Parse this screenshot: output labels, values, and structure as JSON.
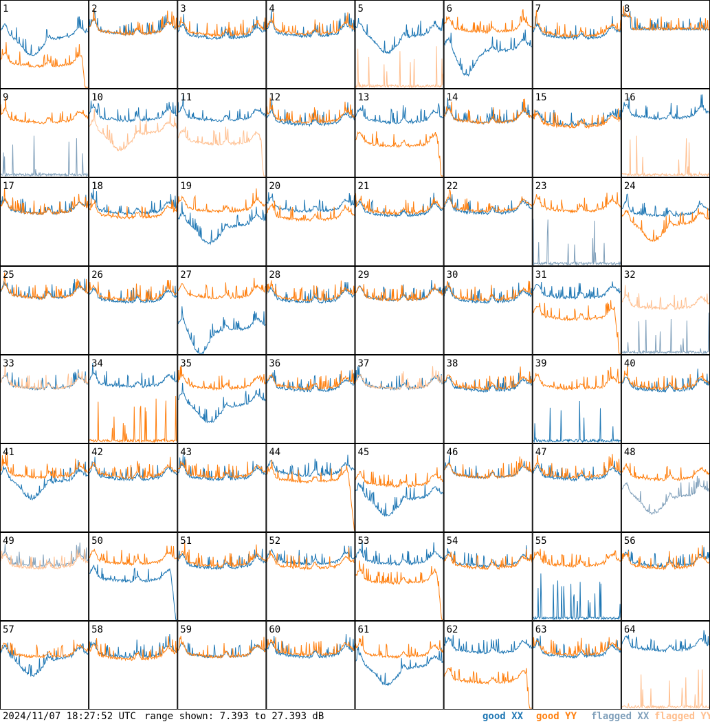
{
  "footer": {
    "timestamp": "2024/11/07 18:27:52 UTC",
    "range_text": "range shown: 7.393 to 27.393 dB"
  },
  "legend": [
    {
      "label": "good XX",
      "color": "#1f77b4"
    },
    {
      "label": "good YY",
      "color": "#ff7f0e"
    },
    {
      "label": "flagged XX",
      "color": "#7f9fba"
    },
    {
      "label": "flagged YY",
      "color": "#ffbf8f"
    }
  ],
  "colors": {
    "good_xx": "#1f77b4",
    "good_yy": "#ff7f0e",
    "flagged_xx": "#7f9fba",
    "flagged_yy": "#ffbf8f"
  },
  "chart_data": {
    "type": "line",
    "layout": "small-multiples 8x8",
    "unit": "dB",
    "ylim": [
      7.393,
      27.393
    ],
    "panels": [
      {
        "id": "1",
        "xx": {
          "state": "good",
          "level": 20.0,
          "shape": "dip"
        },
        "yy": {
          "state": "good",
          "level": 13.5,
          "shape": "dropend"
        }
      },
      {
        "id": "2",
        "xx": {
          "state": "good",
          "level": 21.0,
          "shape": "normal"
        },
        "yy": {
          "state": "good",
          "level": 21.0,
          "shape": "normal"
        }
      },
      {
        "id": "3",
        "xx": {
          "state": "good",
          "level": 20.0,
          "shape": "normal"
        },
        "yy": {
          "state": "good",
          "level": 20.7,
          "shape": "normal"
        }
      },
      {
        "id": "4",
        "xx": {
          "state": "good",
          "level": 20.5,
          "shape": "normal"
        },
        "yy": {
          "state": "good",
          "level": 21.0,
          "shape": "normal"
        }
      },
      {
        "id": "5",
        "xx": {
          "state": "good",
          "level": 20.5,
          "shape": "dip"
        },
        "yy": {
          "state": "flagged",
          "level": 7.5,
          "shape": "spikes"
        }
      },
      {
        "id": "6",
        "xx": {
          "state": "good",
          "level": 17.0,
          "shape": "lowdip"
        },
        "yy": {
          "state": "good",
          "level": 21.5,
          "shape": "normal"
        }
      },
      {
        "id": "7",
        "xx": {
          "state": "good",
          "level": 20.0,
          "shape": "normal"
        },
        "yy": {
          "state": "good",
          "level": 20.5,
          "shape": "normal"
        }
      },
      {
        "id": "8",
        "xx": {
          "state": "good",
          "level": 21.0,
          "shape": "flat"
        },
        "yy": {
          "state": "good",
          "level": 21.0,
          "shape": "flat"
        }
      },
      {
        "id": "9",
        "xx": {
          "state": "flagged",
          "level": 7.5,
          "shape": "spikes"
        },
        "yy": {
          "state": "good",
          "level": 21.0,
          "shape": "normal"
        }
      },
      {
        "id": "10",
        "xx": {
          "state": "good",
          "level": 21.5,
          "shape": "normal"
        },
        "yy": {
          "state": "flagged",
          "level": 18.5,
          "shape": "dip"
        }
      },
      {
        "id": "11",
        "xx": {
          "state": "good",
          "level": 21.5,
          "shape": "normal"
        },
        "yy": {
          "state": "flagged",
          "level": 16.0,
          "shape": "dropend"
        }
      },
      {
        "id": "12",
        "xx": {
          "state": "good",
          "level": 20.5,
          "shape": "normal"
        },
        "yy": {
          "state": "good",
          "level": 21.0,
          "shape": "normal"
        }
      },
      {
        "id": "13",
        "xx": {
          "state": "good",
          "level": 21.0,
          "shape": "normal"
        },
        "yy": {
          "state": "good",
          "level": 15.5,
          "shape": "dropend"
        }
      },
      {
        "id": "14",
        "xx": {
          "state": "good",
          "level": 21.0,
          "shape": "normal"
        },
        "yy": {
          "state": "good",
          "level": 21.0,
          "shape": "normal"
        }
      },
      {
        "id": "15",
        "xx": {
          "state": "good",
          "level": 20.5,
          "shape": "normal"
        },
        "yy": {
          "state": "good",
          "level": 20.0,
          "shape": "normal"
        }
      },
      {
        "id": "16",
        "xx": {
          "state": "good",
          "level": 22.0,
          "shape": "normal"
        },
        "yy": {
          "state": "flagged",
          "level": 7.5,
          "shape": "spikes"
        }
      },
      {
        "id": "17",
        "xx": {
          "state": "good",
          "level": 20.5,
          "shape": "normal"
        },
        "yy": {
          "state": "good",
          "level": 20.5,
          "shape": "normal"
        }
      },
      {
        "id": "18",
        "xx": {
          "state": "good",
          "level": 20.5,
          "shape": "normal"
        },
        "yy": {
          "state": "good",
          "level": 19.5,
          "shape": "normal"
        }
      },
      {
        "id": "19",
        "xx": {
          "state": "good",
          "level": 17.5,
          "shape": "dip"
        },
        "yy": {
          "state": "good",
          "level": 21.0,
          "shape": "normal"
        }
      },
      {
        "id": "20",
        "xx": {
          "state": "good",
          "level": 21.0,
          "shape": "normal"
        },
        "yy": {
          "state": "good",
          "level": 19.0,
          "shape": "normal"
        }
      },
      {
        "id": "21",
        "xx": {
          "state": "good",
          "level": 20.0,
          "shape": "normal"
        },
        "yy": {
          "state": "good",
          "level": 20.5,
          "shape": "normal"
        }
      },
      {
        "id": "22",
        "xx": {
          "state": "good",
          "level": 20.5,
          "shape": "normal"
        },
        "yy": {
          "state": "good",
          "level": 21.0,
          "shape": "normal"
        }
      },
      {
        "id": "23",
        "xx": {
          "state": "flagged",
          "level": 8.5,
          "shape": "spikes"
        },
        "yy": {
          "state": "good",
          "level": 21.0,
          "shape": "normal"
        }
      },
      {
        "id": "24",
        "xx": {
          "state": "good",
          "level": 20.0,
          "shape": "normal"
        },
        "yy": {
          "state": "good",
          "level": 18.0,
          "shape": "dip"
        }
      },
      {
        "id": "25",
        "xx": {
          "state": "good",
          "level": 21.5,
          "shape": "normal"
        },
        "yy": {
          "state": "good",
          "level": 21.5,
          "shape": "normal"
        }
      },
      {
        "id": "26",
        "xx": {
          "state": "good",
          "level": 20.5,
          "shape": "normal"
        },
        "yy": {
          "state": "good",
          "level": 21.0,
          "shape": "normal"
        }
      },
      {
        "id": "27",
        "xx": {
          "state": "good",
          "level": 14.0,
          "shape": "lowdip"
        },
        "yy": {
          "state": "good",
          "level": 21.5,
          "shape": "normal"
        }
      },
      {
        "id": "28",
        "xx": {
          "state": "good",
          "level": 20.5,
          "shape": "normal"
        },
        "yy": {
          "state": "good",
          "level": 21.0,
          "shape": "normal"
        }
      },
      {
        "id": "29",
        "xx": {
          "state": "good",
          "level": 21.0,
          "shape": "normal"
        },
        "yy": {
          "state": "good",
          "level": 21.0,
          "shape": "normal"
        }
      },
      {
        "id": "30",
        "xx": {
          "state": "good",
          "level": 20.5,
          "shape": "normal"
        },
        "yy": {
          "state": "good",
          "level": 21.0,
          "shape": "normal"
        }
      },
      {
        "id": "31",
        "xx": {
          "state": "good",
          "level": 21.5,
          "shape": "normal"
        },
        "yy": {
          "state": "good",
          "level": 16.5,
          "shape": "dropend"
        }
      },
      {
        "id": "32",
        "xx": {
          "state": "flagged",
          "level": 7.5,
          "shape": "spikes"
        },
        "yy": {
          "state": "flagged",
          "level": 19.0,
          "shape": "normal"
        }
      },
      {
        "id": "33",
        "xx": {
          "state": "good",
          "level": 21.0,
          "shape": "normal"
        },
        "yy": {
          "state": "flagged",
          "level": 21.0,
          "shape": "normal"
        }
      },
      {
        "id": "34",
        "xx": {
          "state": "good",
          "level": 21.5,
          "shape": "normal"
        },
        "yy": {
          "state": "good",
          "level": 8.0,
          "shape": "spikes"
        }
      },
      {
        "id": "35",
        "xx": {
          "state": "good",
          "level": 17.0,
          "shape": "dip"
        },
        "yy": {
          "state": "good",
          "level": 21.0,
          "shape": "normal"
        }
      },
      {
        "id": "36",
        "xx": {
          "state": "good",
          "level": 20.5,
          "shape": "normal"
        },
        "yy": {
          "state": "good",
          "level": 21.0,
          "shape": "normal"
        }
      },
      {
        "id": "37",
        "xx": {
          "state": "good",
          "level": 21.0,
          "shape": "normal"
        },
        "yy": {
          "state": "flagged",
          "level": 21.0,
          "shape": "normal"
        }
      },
      {
        "id": "38",
        "xx": {
          "state": "good",
          "level": 20.5,
          "shape": "normal"
        },
        "yy": {
          "state": "good",
          "level": 21.0,
          "shape": "normal"
        }
      },
      {
        "id": "39",
        "xx": {
          "state": "good",
          "level": 7.8,
          "shape": "spikes"
        },
        "yy": {
          "state": "good",
          "level": 21.0,
          "shape": "normal"
        }
      },
      {
        "id": "40",
        "xx": {
          "state": "good",
          "level": 20.5,
          "shape": "normal"
        },
        "yy": {
          "state": "good",
          "level": 21.0,
          "shape": "normal"
        }
      },
      {
        "id": "41",
        "xx": {
          "state": "good",
          "level": 20.0,
          "shape": "dip"
        },
        "yy": {
          "state": "good",
          "level": 21.0,
          "shape": "normal"
        }
      },
      {
        "id": "42",
        "xx": {
          "state": "good",
          "level": 20.5,
          "shape": "normal"
        },
        "yy": {
          "state": "good",
          "level": 21.0,
          "shape": "normal"
        }
      },
      {
        "id": "43",
        "xx": {
          "state": "good",
          "level": 20.5,
          "shape": "normal"
        },
        "yy": {
          "state": "good",
          "level": 21.0,
          "shape": "normal"
        }
      },
      {
        "id": "44",
        "xx": {
          "state": "good",
          "level": 21.5,
          "shape": "normal"
        },
        "yy": {
          "state": "good",
          "level": 20.0,
          "shape": "dropend"
        }
      },
      {
        "id": "45",
        "xx": {
          "state": "good",
          "level": 16.0,
          "shape": "dip"
        },
        "yy": {
          "state": "good",
          "level": 19.0,
          "shape": "normal"
        }
      },
      {
        "id": "46",
        "xx": {
          "state": "good",
          "level": 21.0,
          "shape": "normal"
        },
        "yy": {
          "state": "good",
          "level": 21.0,
          "shape": "normal"
        }
      },
      {
        "id": "47",
        "xx": {
          "state": "good",
          "level": 20.5,
          "shape": "normal"
        },
        "yy": {
          "state": "good",
          "level": 21.0,
          "shape": "normal"
        }
      },
      {
        "id": "48",
        "xx": {
          "state": "flagged",
          "level": 16.5,
          "shape": "dip"
        },
        "yy": {
          "state": "good",
          "level": 20.5,
          "shape": "normal"
        }
      },
      {
        "id": "49",
        "xx": {
          "state": "flagged",
          "level": 21.0,
          "shape": "normal"
        },
        "yy": {
          "state": "flagged",
          "level": 20.5,
          "shape": "normal"
        }
      },
      {
        "id": "50",
        "xx": {
          "state": "good",
          "level": 17.5,
          "shape": "dropend"
        },
        "yy": {
          "state": "good",
          "level": 21.5,
          "shape": "normal"
        }
      },
      {
        "id": "51",
        "xx": {
          "state": "good",
          "level": 20.5,
          "shape": "normal"
        },
        "yy": {
          "state": "good",
          "level": 21.0,
          "shape": "normal"
        }
      },
      {
        "id": "52",
        "xx": {
          "state": "good",
          "level": 21.5,
          "shape": "normal"
        },
        "yy": {
          "state": "good",
          "level": 20.5,
          "shape": "normal"
        }
      },
      {
        "id": "53",
        "xx": {
          "state": "good",
          "level": 21.5,
          "shape": "normal"
        },
        "yy": {
          "state": "good",
          "level": 17.0,
          "shape": "dropend"
        }
      },
      {
        "id": "54",
        "xx": {
          "state": "good",
          "level": 21.0,
          "shape": "normal"
        },
        "yy": {
          "state": "good",
          "level": 20.5,
          "shape": "normal"
        }
      },
      {
        "id": "55",
        "xx": {
          "state": "good",
          "level": 8.5,
          "shape": "spikes"
        },
        "yy": {
          "state": "good",
          "level": 21.0,
          "shape": "normal"
        }
      },
      {
        "id": "56",
        "xx": {
          "state": "good",
          "level": 21.0,
          "shape": "normal"
        },
        "yy": {
          "state": "good",
          "level": 20.5,
          "shape": "normal"
        }
      },
      {
        "id": "57",
        "xx": {
          "state": "good",
          "level": 20.0,
          "shape": "dip"
        },
        "yy": {
          "state": "good",
          "level": 20.5,
          "shape": "normal"
        }
      },
      {
        "id": "58",
        "xx": {
          "state": "good",
          "level": 20.5,
          "shape": "normal"
        },
        "yy": {
          "state": "good",
          "level": 20.0,
          "shape": "normal"
        }
      },
      {
        "id": "59",
        "xx": {
          "state": "good",
          "level": 20.5,
          "shape": "normal"
        },
        "yy": {
          "state": "good",
          "level": 20.5,
          "shape": "normal"
        }
      },
      {
        "id": "60",
        "xx": {
          "state": "good",
          "level": 20.5,
          "shape": "normal"
        },
        "yy": {
          "state": "good",
          "level": 21.0,
          "shape": "normal"
        }
      },
      {
        "id": "61",
        "xx": {
          "state": "good",
          "level": 18.0,
          "shape": "dip"
        },
        "yy": {
          "state": "good",
          "level": 20.5,
          "shape": "normal"
        }
      },
      {
        "id": "62",
        "xx": {
          "state": "good",
          "level": 21.5,
          "shape": "normal"
        },
        "yy": {
          "state": "good",
          "level": 14.5,
          "shape": "dropend"
        }
      },
      {
        "id": "63",
        "xx": {
          "state": "good",
          "level": 20.5,
          "shape": "normal"
        },
        "yy": {
          "state": "good",
          "level": 21.0,
          "shape": "normal"
        }
      },
      {
        "id": "64",
        "xx": {
          "state": "good",
          "level": 22.0,
          "shape": "normal"
        },
        "yy": {
          "state": "flagged",
          "level": 7.5,
          "shape": "spikes"
        }
      }
    ]
  }
}
